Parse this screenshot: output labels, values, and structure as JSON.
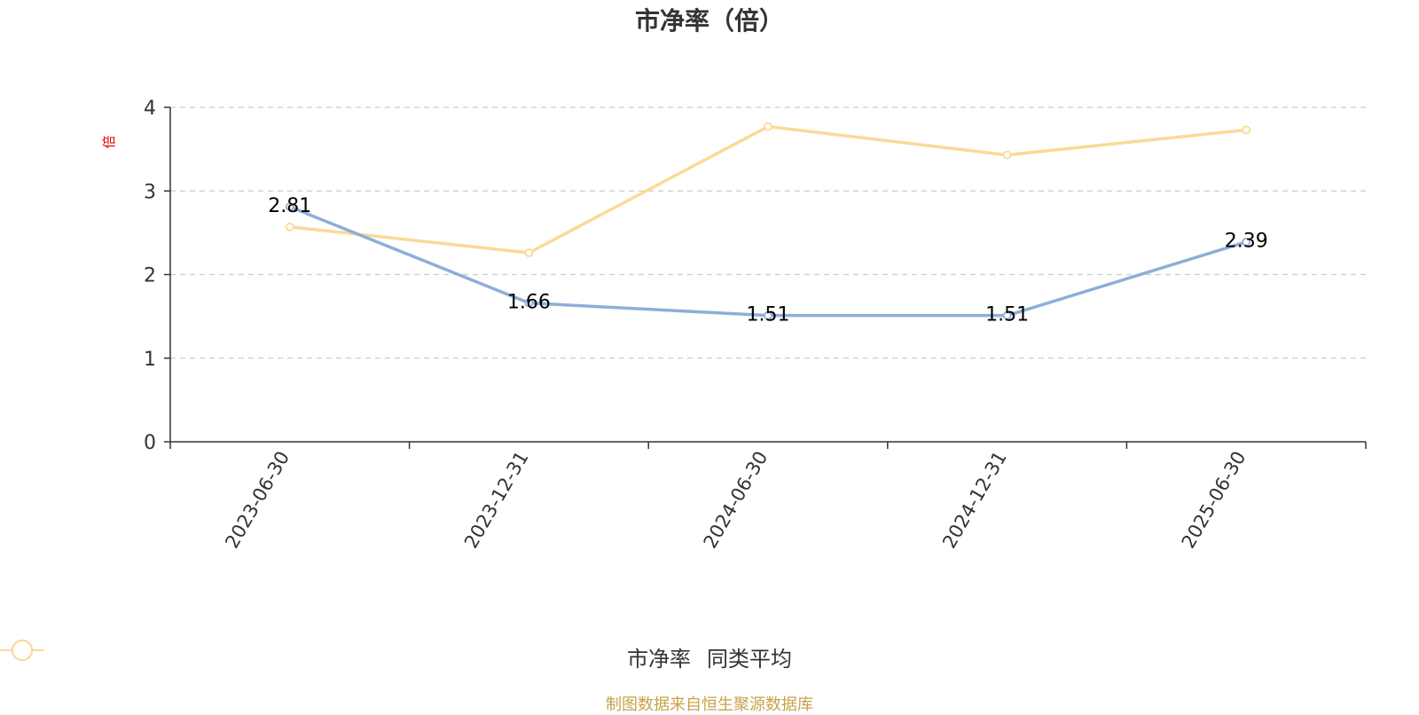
{
  "title": "市净率（倍）",
  "y_unit": "倍",
  "source_note": "制图数据来自恒生聚源数据库",
  "colors": {
    "series_pb": "#8eaed8",
    "series_avg": "#fcd996",
    "axis": "#333333",
    "grid": "#cccccc",
    "unit": "#e00000",
    "source": "#c8a24a"
  },
  "chart_data": {
    "type": "line",
    "title": "市净率（倍）",
    "ylabel": "倍",
    "xlabel": "",
    "x": [
      "2023-06-30",
      "2023-12-31",
      "2024-06-30",
      "2024-12-31",
      "2025-06-30"
    ],
    "ylim": [
      0,
      4
    ],
    "yticks": [
      0,
      1,
      2,
      3,
      4
    ],
    "grid": true,
    "legend_position": "bottom",
    "series": [
      {
        "name": "市净率",
        "values": [
          2.81,
          1.66,
          1.51,
          1.51,
          2.39
        ],
        "labels": [
          "2.81",
          "1.66",
          "1.51",
          "1.51",
          "2.39"
        ]
      },
      {
        "name": "同类平均",
        "values": [
          2.57,
          2.26,
          3.77,
          3.43,
          3.73
        ]
      }
    ]
  }
}
